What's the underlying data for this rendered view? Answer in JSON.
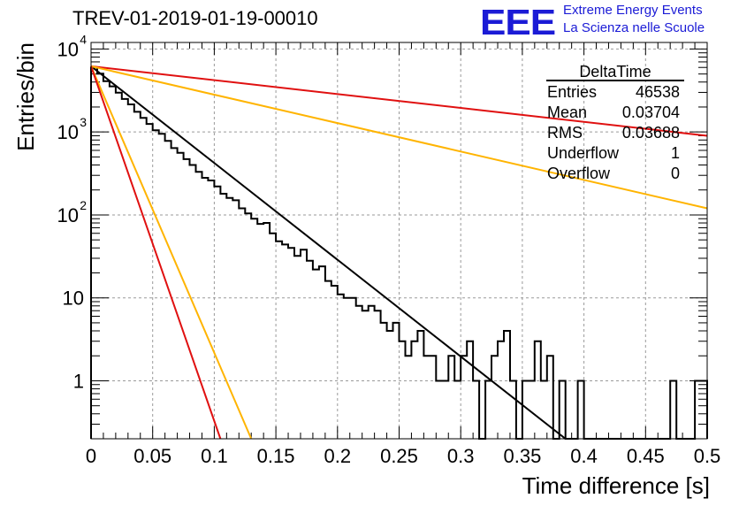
{
  "title": "TREV-01-2019-01-19-00010",
  "logo": {
    "mark": "EEE",
    "line1": "Extreme Energy Events",
    "line2": "La Scienza nelle Scuole",
    "color": "#1b1bd6"
  },
  "stats": {
    "name": "DeltaTime",
    "rows": [
      {
        "label": "Entries",
        "value": "46538"
      },
      {
        "label": "Mean",
        "value": "0.03704"
      },
      {
        "label": "RMS",
        "value": "0.03688"
      },
      {
        "label": "Underflow",
        "value": "1"
      },
      {
        "label": "Overflow",
        "value": "0"
      }
    ]
  },
  "chart_data": {
    "type": "histogram",
    "scale_y": "log",
    "grid": true,
    "xlabel": "Time difference [s]",
    "ylabel": "Entries/bin",
    "xlim": [
      0,
      0.5
    ],
    "ylim": [
      0.2,
      12000
    ],
    "x_ticks": [
      "0",
      "0.05",
      "0.1",
      "0.15",
      "0.2",
      "0.25",
      "0.3",
      "0.35",
      "0.4",
      "0.45",
      "0.5"
    ],
    "y_ticks": [
      {
        "value": 1,
        "label": "1"
      },
      {
        "value": 10,
        "label": "10"
      },
      {
        "value": 100,
        "label": "10",
        "exp": "2"
      },
      {
        "value": 1000,
        "label": "10",
        "exp": "3"
      },
      {
        "value": 10000,
        "label": "10",
        "exp": "4"
      }
    ],
    "bin_width": 0.005,
    "histogram": {
      "color": "#000000",
      "counts": [
        6000,
        5050,
        4100,
        3550,
        2980,
        2500,
        2150,
        1750,
        1480,
        1250,
        1050,
        950,
        780,
        640,
        560,
        470,
        400,
        330,
        280,
        260,
        220,
        180,
        160,
        150,
        120,
        104,
        90,
        78,
        80,
        60,
        48,
        44,
        40,
        32,
        38,
        28,
        22,
        24,
        16,
        14,
        11,
        10,
        10,
        8,
        7,
        8,
        7,
        5,
        4,
        5,
        3,
        2,
        3,
        4,
        2,
        2,
        1,
        1,
        2,
        1,
        2,
        3,
        1,
        0,
        1,
        2,
        3,
        4,
        1,
        0,
        1,
        1,
        3,
        1,
        2,
        0,
        1,
        0,
        0,
        1,
        0,
        0,
        0,
        0,
        0,
        0,
        0,
        0,
        0,
        0,
        0,
        0,
        0,
        0,
        1,
        0,
        0,
        0,
        1,
        1
      ]
    },
    "series": [
      {
        "color": "#000000",
        "points": [
          [
            0,
            6200
          ],
          [
            0.385,
            0.2
          ]
        ]
      },
      {
        "color": "#e01010",
        "points": [
          [
            0,
            6200
          ],
          [
            0.5,
            900
          ]
        ]
      },
      {
        "color": "#ffb400",
        "points": [
          [
            0,
            6200
          ],
          [
            0.5,
            120
          ]
        ]
      },
      {
        "color": "#ffb400",
        "points": [
          [
            0,
            6200
          ],
          [
            0.13,
            0.2
          ]
        ]
      },
      {
        "color": "#e01010",
        "points": [
          [
            0,
            6200
          ],
          [
            0.105,
            0.2
          ]
        ]
      }
    ]
  }
}
